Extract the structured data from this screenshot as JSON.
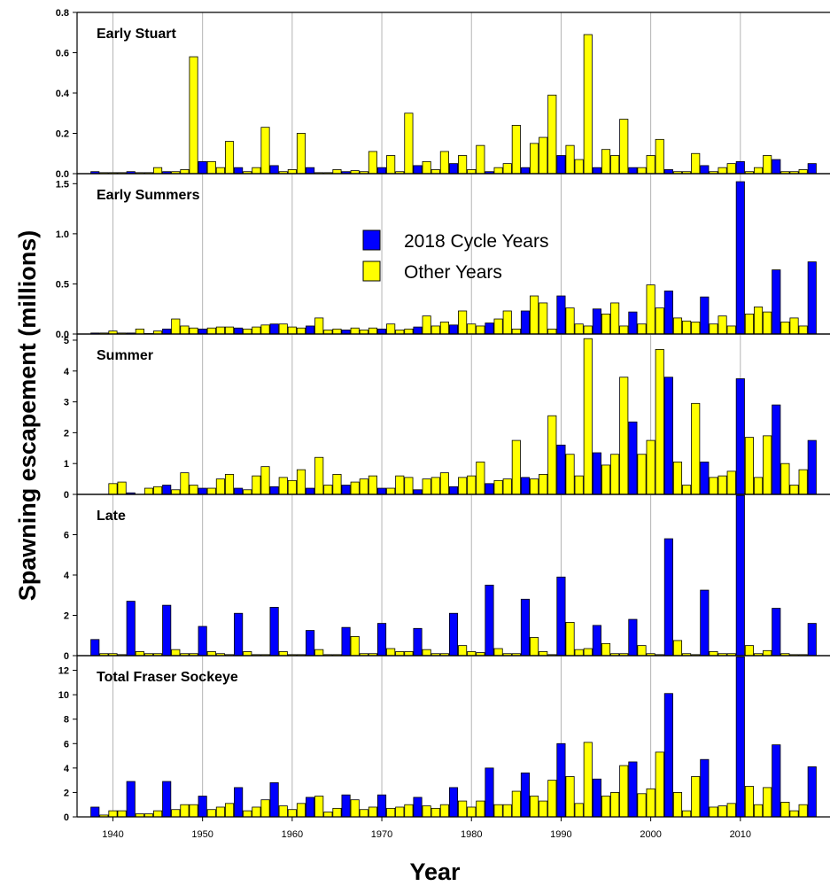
{
  "chart_data": {
    "type": "bar",
    "xlabel": "Year",
    "ylabel": "Spawning escapement (millions)",
    "x_ticks": [
      1940,
      1950,
      1960,
      1970,
      1980,
      1990,
      2000,
      2010
    ],
    "xlim": [
      1936,
      2020
    ],
    "grid_x": true,
    "colors": {
      "cycle": "#0000ff",
      "other": "#ffff00"
    },
    "legend": {
      "placement": "inside second panel, center",
      "entries": [
        {
          "key": "cycle",
          "label": "2018 Cycle Years"
        },
        {
          "key": "other",
          "label": "Other Years"
        }
      ]
    },
    "cycle_years_note": "",
    "panels": [
      {
        "title": "Early Stuart",
        "ylim": [
          0,
          0.8
        ],
        "yticks": [
          0.0,
          0.2,
          0.4,
          0.6,
          0.8
        ],
        "tick_decimals": 1,
        "start_year": 1938,
        "values": [
          0.01,
          0.005,
          0.005,
          0.005,
          0.01,
          0.005,
          0.005,
          0.03,
          0.01,
          0.01,
          0.02,
          0.58,
          0.06,
          0.06,
          0.03,
          0.16,
          0.03,
          0.01,
          0.03,
          0.23,
          0.04,
          0.01,
          0.02,
          0.2,
          0.03,
          0.005,
          0.005,
          0.02,
          0.01,
          0.015,
          0.01,
          0.11,
          0.03,
          0.09,
          0.01,
          0.3,
          0.04,
          0.06,
          0.02,
          0.11,
          0.05,
          0.09,
          0.02,
          0.14,
          0.01,
          0.03,
          0.05,
          0.24,
          0.03,
          0.15,
          0.18,
          0.39,
          0.09,
          0.14,
          0.07,
          0.69,
          0.03,
          0.12,
          0.09,
          0.27,
          0.03,
          0.03,
          0.09,
          0.17,
          0.02,
          0.01,
          0.01,
          0.1,
          0.04,
          0.01,
          0.03,
          0.05,
          0.06,
          0.01,
          0.03,
          0.09,
          0.07,
          0.01,
          0.01,
          0.02,
          0.05
        ]
      },
      {
        "title": "Early Summers",
        "ylim": [
          0,
          1.6
        ],
        "yticks": [
          0.0,
          0.5,
          1.0,
          1.5
        ],
        "tick_decimals": 1,
        "start_year": 1938,
        "values": [
          0.01,
          0.01,
          0.03,
          0.01,
          0.01,
          0.05,
          0.005,
          0.03,
          0.05,
          0.15,
          0.08,
          0.06,
          0.05,
          0.06,
          0.07,
          0.07,
          0.06,
          0.05,
          0.07,
          0.09,
          0.1,
          0.1,
          0.07,
          0.06,
          0.08,
          0.16,
          0.04,
          0.05,
          0.04,
          0.06,
          0.04,
          0.06,
          0.05,
          0.1,
          0.04,
          0.05,
          0.07,
          0.18,
          0.08,
          0.12,
          0.09,
          0.23,
          0.1,
          0.08,
          0.11,
          0.15,
          0.23,
          0.05,
          0.23,
          0.38,
          0.31,
          0.05,
          0.38,
          0.26,
          0.1,
          0.08,
          0.25,
          0.2,
          0.31,
          0.08,
          0.22,
          0.1,
          0.49,
          0.26,
          0.43,
          0.16,
          0.13,
          0.12,
          0.37,
          0.1,
          0.18,
          0.08,
          1.52,
          0.2,
          0.27,
          0.22,
          0.64,
          0.12,
          0.16,
          0.08,
          0.72
        ]
      },
      {
        "title": "Summer",
        "ylim": [
          0,
          5.2
        ],
        "yticks": [
          0,
          1,
          2,
          3,
          4,
          5
        ],
        "tick_decimals": 0,
        "start_year": 1938,
        "values": [
          0,
          0,
          0.35,
          0.4,
          0.05,
          0,
          0.2,
          0.25,
          0.3,
          0.15,
          0.7,
          0.3,
          0.2,
          0.2,
          0.5,
          0.65,
          0.2,
          0.15,
          0.6,
          0.9,
          0.25,
          0.55,
          0.45,
          0.8,
          0.2,
          1.2,
          0.3,
          0.65,
          0.3,
          0.4,
          0.5,
          0.6,
          0.2,
          0.2,
          0.6,
          0.55,
          0.15,
          0.5,
          0.55,
          0.7,
          0.25,
          0.55,
          0.6,
          1.05,
          0.35,
          0.45,
          0.5,
          1.75,
          0.55,
          0.5,
          0.65,
          2.55,
          1.6,
          1.3,
          0.6,
          5.05,
          1.35,
          0.95,
          1.3,
          3.8,
          2.35,
          1.3,
          1.75,
          4.7,
          3.8,
          1.05,
          0.3,
          2.95,
          1.05,
          0.55,
          0.6,
          0.75,
          3.75,
          1.85,
          0.55,
          1.9,
          2.9,
          1.0,
          0.3,
          0.8,
          1.75
        ]
      },
      {
        "title": "Late",
        "ylim": [
          0,
          8
        ],
        "yticks": [
          0,
          2,
          4,
          6
        ],
        "tick_decimals": 0,
        "start_year": 1938,
        "values": [
          0.8,
          0.1,
          0.1,
          0.05,
          2.7,
          0.2,
          0.1,
          0.1,
          2.5,
          0.3,
          0.1,
          0.1,
          1.45,
          0.2,
          0.1,
          0.05,
          2.1,
          0.2,
          0.05,
          0.05,
          2.4,
          0.2,
          0.05,
          0.05,
          1.25,
          0.3,
          0.05,
          0.05,
          1.4,
          0.95,
          0.1,
          0.1,
          1.6,
          0.35,
          0.2,
          0.2,
          1.35,
          0.3,
          0.1,
          0.1,
          2.1,
          0.5,
          0.2,
          0.15,
          3.5,
          0.35,
          0.1,
          0.1,
          2.8,
          0.9,
          0.2,
          0.05,
          3.9,
          1.65,
          0.3,
          0.35,
          1.5,
          0.6,
          0.1,
          0.1,
          1.8,
          0.5,
          0.1,
          0.05,
          5.8,
          0.75,
          0.1,
          0.05,
          3.25,
          0.2,
          0.1,
          0.1,
          7.95,
          0.5,
          0.1,
          0.25,
          2.35,
          0.1,
          0.05,
          0.05,
          1.6
        ]
      },
      {
        "title": "Total Fraser Sockeye",
        "ylim": [
          0,
          13.2
        ],
        "yticks": [
          0,
          2,
          4,
          6,
          8,
          10,
          12
        ],
        "tick_decimals": 0,
        "start_year": 1938,
        "values": [
          0.8,
          0.15,
          0.5,
          0.5,
          2.9,
          0.25,
          0.25,
          0.5,
          2.9,
          0.6,
          1.0,
          1.0,
          1.7,
          0.6,
          0.8,
          1.1,
          2.4,
          0.5,
          0.8,
          1.4,
          2.8,
          0.9,
          0.6,
          1.1,
          1.6,
          1.7,
          0.4,
          0.7,
          1.8,
          1.4,
          0.6,
          0.8,
          1.8,
          0.7,
          0.8,
          1.0,
          1.6,
          0.9,
          0.7,
          1.0,
          2.4,
          1.3,
          0.8,
          1.3,
          4.0,
          1.0,
          1.0,
          2.1,
          3.6,
          1.7,
          1.3,
          3.0,
          6.0,
          3.3,
          1.1,
          6.1,
          3.1,
          1.7,
          2.0,
          4.2,
          4.5,
          1.9,
          2.3,
          5.3,
          10.1,
          2.0,
          0.5,
          3.3,
          4.7,
          0.8,
          0.9,
          1.1,
          13.1,
          2.5,
          1.0,
          2.4,
          5.9,
          1.2,
          0.5,
          1.0,
          4.1
        ]
      }
    ]
  }
}
